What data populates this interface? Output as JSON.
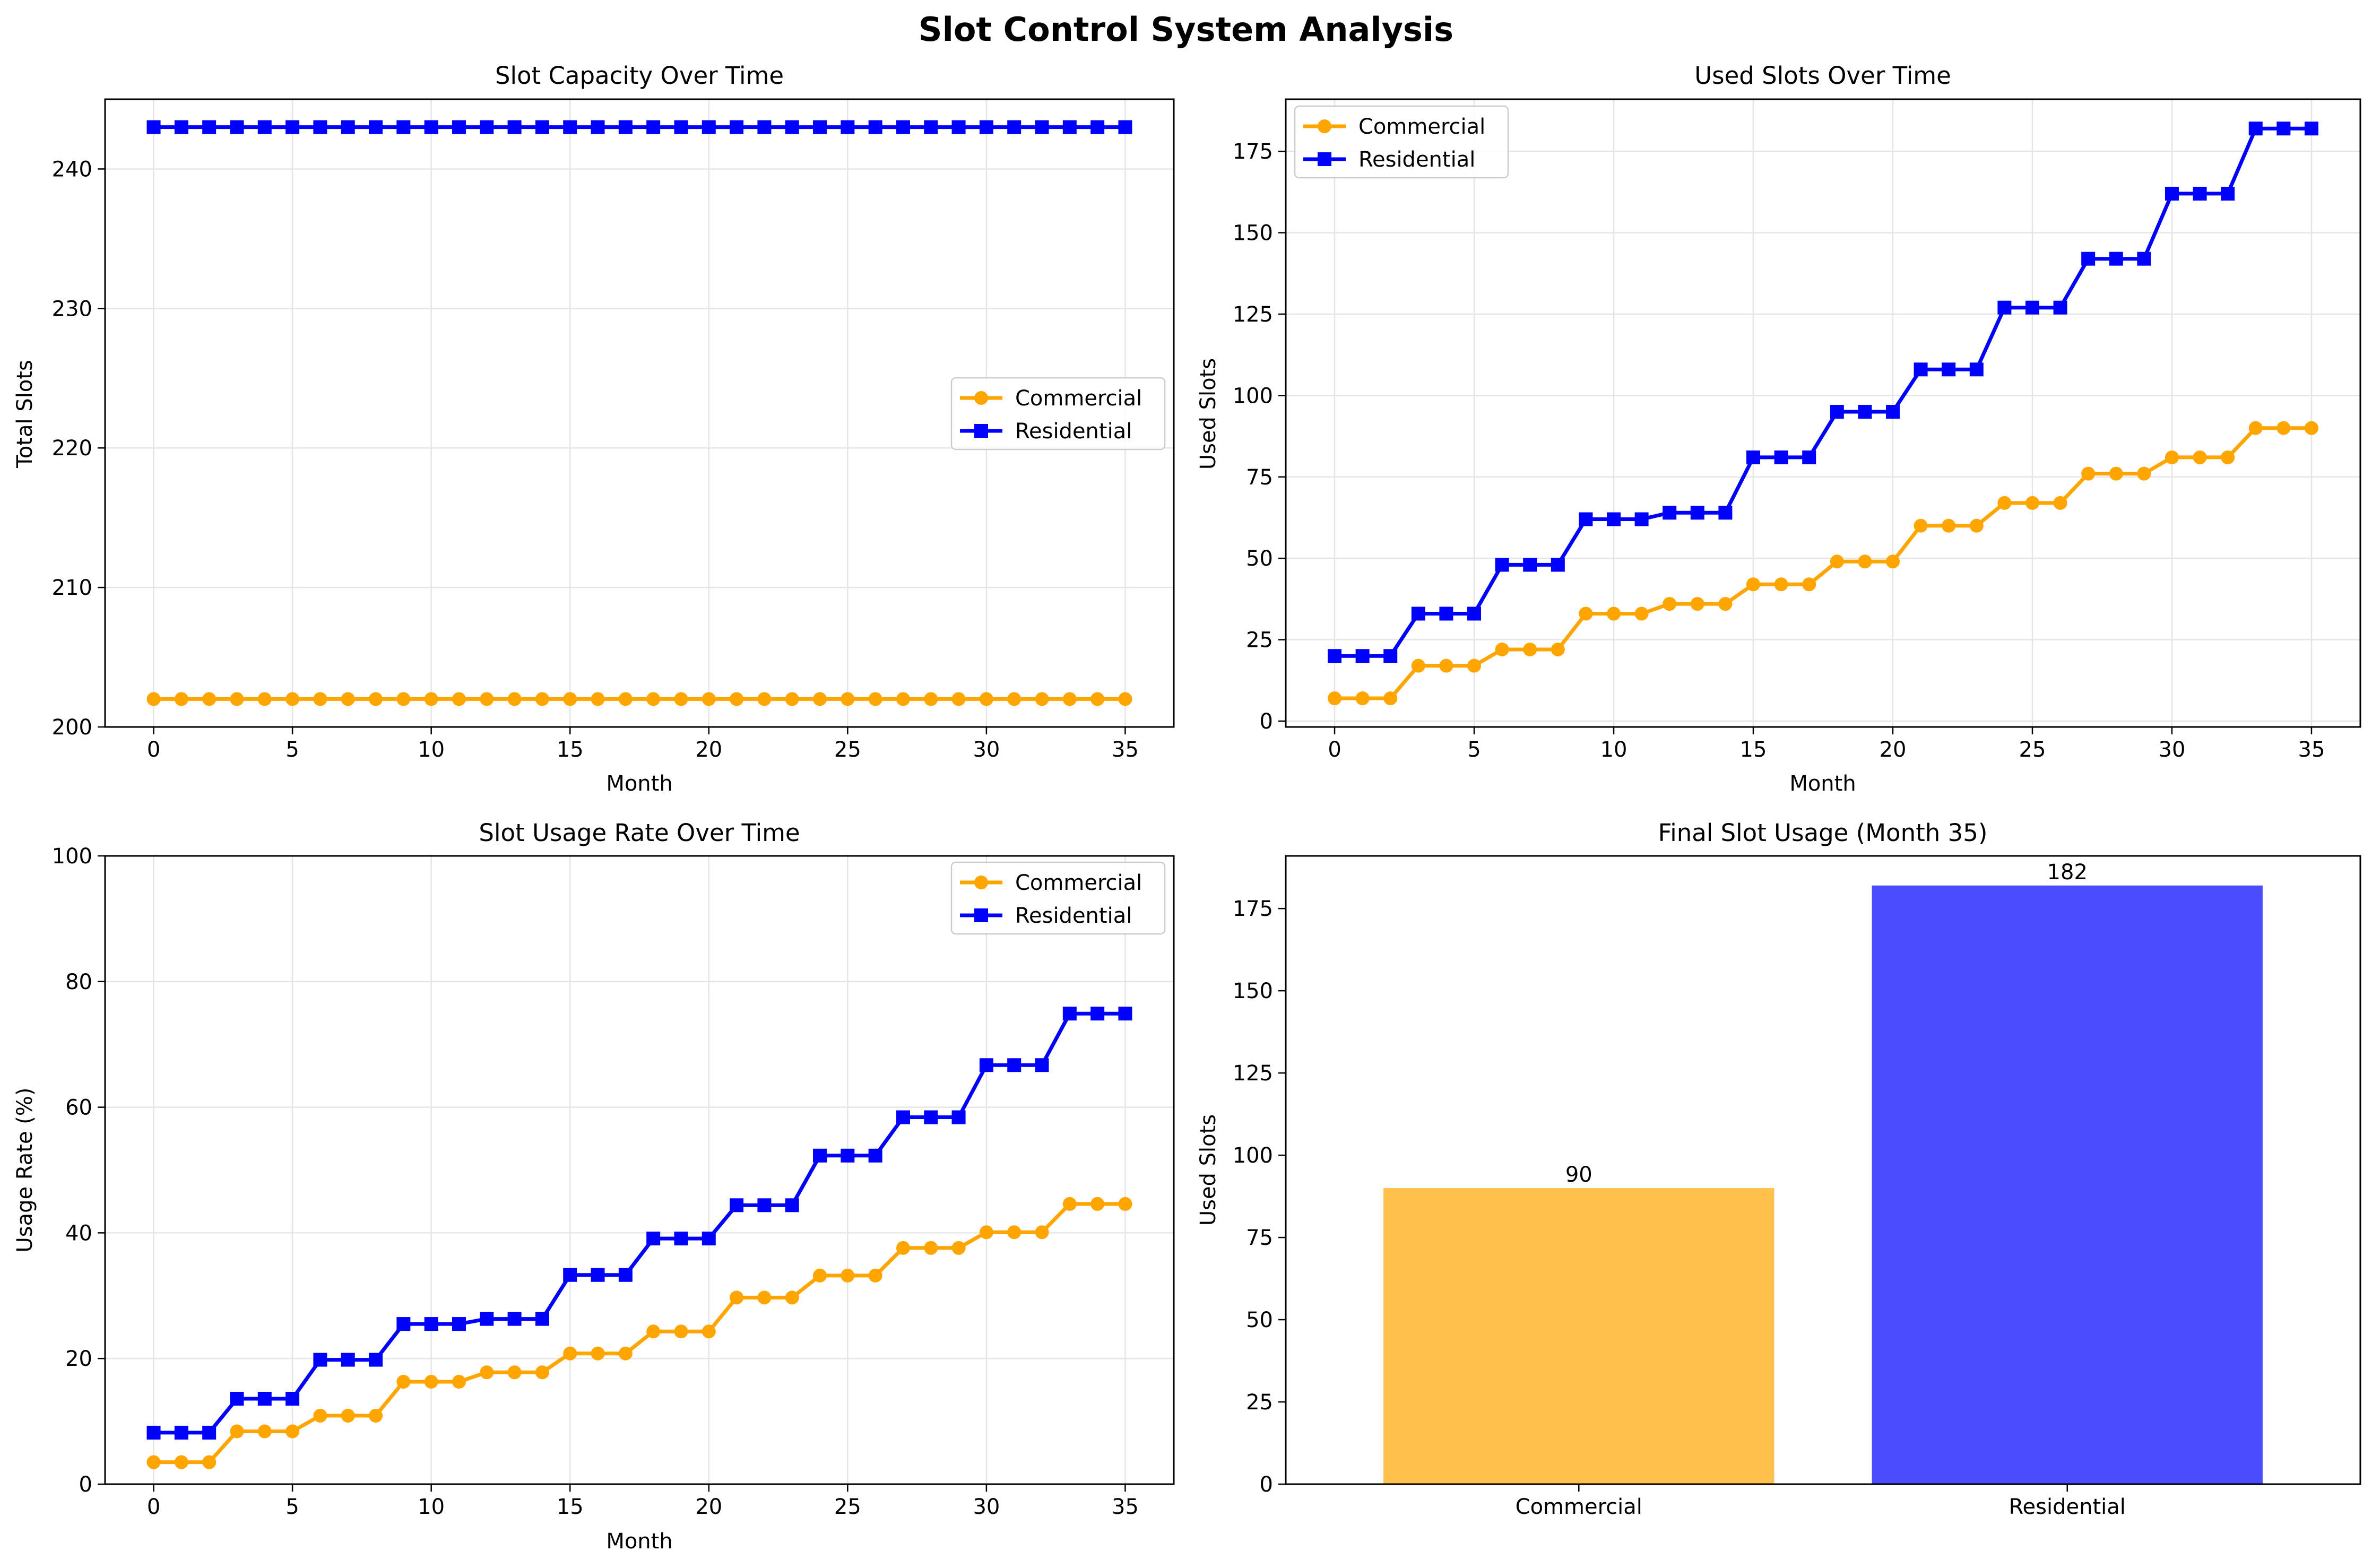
{
  "figure_title": "Slot Control System Analysis",
  "colors": {
    "commercial": "#FFA500",
    "residential": "#0000FF",
    "grid": "#E5E5E5"
  },
  "chart_data": [
    {
      "type": "line",
      "title": "Slot Capacity Over Time",
      "xlabel": "Month",
      "ylabel": "Total Slots",
      "xlim": [
        -1.75,
        36.75
      ],
      "ylim": [
        200,
        245
      ],
      "xticks": [
        0,
        5,
        10,
        15,
        20,
        25,
        30,
        35
      ],
      "yticks": [
        200,
        210,
        220,
        230,
        240
      ],
      "legend": "center-right",
      "grid": true,
      "x": [
        0,
        1,
        2,
        3,
        4,
        5,
        6,
        7,
        8,
        9,
        10,
        11,
        12,
        13,
        14,
        15,
        16,
        17,
        18,
        19,
        20,
        21,
        22,
        23,
        24,
        25,
        26,
        27,
        28,
        29,
        30,
        31,
        32,
        33,
        34,
        35
      ],
      "series": [
        {
          "name": "Commercial",
          "color": "#FFA500",
          "marker": "circle",
          "values": [
            202,
            202,
            202,
            202,
            202,
            202,
            202,
            202,
            202,
            202,
            202,
            202,
            202,
            202,
            202,
            202,
            202,
            202,
            202,
            202,
            202,
            202,
            202,
            202,
            202,
            202,
            202,
            202,
            202,
            202,
            202,
            202,
            202,
            202,
            202,
            202
          ]
        },
        {
          "name": "Residential",
          "color": "#0000FF",
          "marker": "square",
          "values": [
            243,
            243,
            243,
            243,
            243,
            243,
            243,
            243,
            243,
            243,
            243,
            243,
            243,
            243,
            243,
            243,
            243,
            243,
            243,
            243,
            243,
            243,
            243,
            243,
            243,
            243,
            243,
            243,
            243,
            243,
            243,
            243,
            243,
            243,
            243,
            243
          ]
        }
      ]
    },
    {
      "type": "line",
      "title": "Used Slots Over Time",
      "xlabel": "Month",
      "ylabel": "Used Slots",
      "xlim": [
        -1.75,
        36.75
      ],
      "ylim": [
        -1.8,
        191
      ],
      "xticks": [
        0,
        5,
        10,
        15,
        20,
        25,
        30,
        35
      ],
      "yticks": [
        0,
        25,
        50,
        75,
        100,
        125,
        150,
        175
      ],
      "legend": "top-left",
      "grid": true,
      "x": [
        0,
        1,
        2,
        3,
        4,
        5,
        6,
        7,
        8,
        9,
        10,
        11,
        12,
        13,
        14,
        15,
        16,
        17,
        18,
        19,
        20,
        21,
        22,
        23,
        24,
        25,
        26,
        27,
        28,
        29,
        30,
        31,
        32,
        33,
        34,
        35
      ],
      "series": [
        {
          "name": "Commercial",
          "color": "#FFA500",
          "marker": "circle",
          "values": [
            7,
            7,
            7,
            17,
            17,
            17,
            22,
            22,
            22,
            33,
            33,
            33,
            36,
            36,
            36,
            42,
            42,
            42,
            49,
            49,
            49,
            60,
            60,
            60,
            67,
            67,
            67,
            76,
            76,
            76,
            81,
            81,
            81,
            90,
            90,
            90
          ]
        },
        {
          "name": "Residential",
          "color": "#0000FF",
          "marker": "square",
          "values": [
            20,
            20,
            20,
            33,
            33,
            33,
            48,
            48,
            48,
            62,
            62,
            62,
            64,
            64,
            64,
            81,
            81,
            81,
            95,
            95,
            95,
            108,
            108,
            108,
            127,
            127,
            127,
            142,
            142,
            142,
            162,
            162,
            162,
            182,
            182,
            182
          ]
        }
      ]
    },
    {
      "type": "line",
      "title": "Slot Usage Rate Over Time",
      "xlabel": "Month",
      "ylabel": "Usage Rate (%)",
      "xlim": [
        -1.75,
        36.75
      ],
      "ylim": [
        0,
        100
      ],
      "xticks": [
        0,
        5,
        10,
        15,
        20,
        25,
        30,
        35
      ],
      "yticks": [
        0,
        20,
        40,
        60,
        80,
        100
      ],
      "legend": "top-right",
      "grid": true,
      "x": [
        0,
        1,
        2,
        3,
        4,
        5,
        6,
        7,
        8,
        9,
        10,
        11,
        12,
        13,
        14,
        15,
        16,
        17,
        18,
        19,
        20,
        21,
        22,
        23,
        24,
        25,
        26,
        27,
        28,
        29,
        30,
        31,
        32,
        33,
        34,
        35
      ],
      "series": [
        {
          "name": "Commercial",
          "color": "#FFA500",
          "marker": "circle",
          "values": [
            3.5,
            3.5,
            3.5,
            8.4,
            8.4,
            8.4,
            10.9,
            10.9,
            10.9,
            16.3,
            16.3,
            16.3,
            17.8,
            17.8,
            17.8,
            20.8,
            20.8,
            20.8,
            24.3,
            24.3,
            24.3,
            29.7,
            29.7,
            29.7,
            33.2,
            33.2,
            33.2,
            37.6,
            37.6,
            37.6,
            40.1,
            40.1,
            40.1,
            44.6,
            44.6,
            44.6
          ]
        },
        {
          "name": "Residential",
          "color": "#0000FF",
          "marker": "square",
          "values": [
            8.2,
            8.2,
            8.2,
            13.6,
            13.6,
            13.6,
            19.8,
            19.8,
            19.8,
            25.5,
            25.5,
            25.5,
            26.3,
            26.3,
            26.3,
            33.3,
            33.3,
            33.3,
            39.1,
            39.1,
            39.1,
            44.4,
            44.4,
            44.4,
            52.3,
            52.3,
            52.3,
            58.4,
            58.4,
            58.4,
            66.7,
            66.7,
            66.7,
            74.9,
            74.9,
            74.9
          ]
        }
      ]
    },
    {
      "type": "bar",
      "title": "Final Slot Usage (Month 35)",
      "xlabel": "",
      "ylabel": "Used Slots",
      "categories": [
        "Commercial",
        "Residential"
      ],
      "values": [
        90,
        182
      ],
      "value_labels": [
        "90",
        "182"
      ],
      "colors": [
        "#FFA500",
        "#0000FF"
      ],
      "opacity": 0.7,
      "ylim": [
        0,
        191
      ],
      "yticks": [
        0,
        25,
        50,
        75,
        100,
        125,
        150,
        175
      ],
      "grid": false
    }
  ]
}
